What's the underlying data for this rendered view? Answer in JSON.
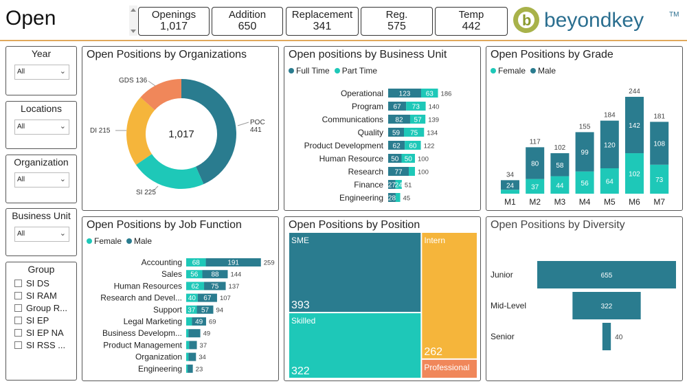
{
  "page_title": "Open",
  "colors": {
    "teal_dark": "#2a7c8f",
    "teal_light": "#1ec8b8",
    "orange": "#f0875a",
    "yellow": "#f5b53b",
    "accent_line": "#e0a85c"
  },
  "kpis": [
    {
      "label": "Openings",
      "value": "1,017"
    },
    {
      "label": "Addition",
      "value": "650"
    },
    {
      "label": "Replacement",
      "value": "341"
    },
    {
      "label": "Reg.",
      "value": "575"
    },
    {
      "label": "Temp",
      "value": "442"
    }
  ],
  "logo": {
    "text": "beyondkey",
    "tm": "TM",
    "letter": "b"
  },
  "filters": {
    "year": {
      "label": "Year",
      "value": "All"
    },
    "locations": {
      "label": "Locations",
      "value": "All"
    },
    "organization": {
      "label": "Organization",
      "value": "All"
    },
    "business_unit": {
      "label": "Business Unit",
      "value": "All"
    },
    "group": {
      "label": "Group",
      "items": [
        "SI DS",
        "SI RAM",
        "Group R...",
        "SI EP",
        "SI EP NA",
        "SI RSS ..."
      ]
    }
  },
  "legends": {
    "full_time": "Full Time",
    "part_time": "Part Time",
    "female": "Female",
    "male": "Male"
  },
  "chart_data": [
    {
      "id": "org",
      "type": "pie",
      "title": "Open Positions by Organizations",
      "center_label": "1,017",
      "slices": [
        {
          "name": "POC",
          "value": 441,
          "label_name": "POC",
          "label_value": "441"
        },
        {
          "name": "SI",
          "value": 225,
          "label": "SI 225"
        },
        {
          "name": "DI",
          "value": 215,
          "label": "DI 215"
        },
        {
          "name": "GDS",
          "value": 136,
          "label": "GDS 136"
        }
      ]
    },
    {
      "id": "bu",
      "type": "bar",
      "orientation": "horizontal",
      "stacked": true,
      "title": "Open positions by Business Unit",
      "categories": [
        "Operational",
        "Program",
        "Communications",
        "Quality",
        "Product Development",
        "Human Resource",
        "Research",
        "Finance",
        "Engineering"
      ],
      "series": [
        {
          "name": "Full Time",
          "values": [
            123,
            67,
            82,
            59,
            62,
            50,
            77,
            27,
            28
          ]
        },
        {
          "name": "Part Time",
          "values": [
            63,
            73,
            57,
            75,
            60,
            50,
            23,
            24,
            17
          ]
        }
      ],
      "segment_labels": [
        [
          "123",
          "63"
        ],
        [
          "67",
          "73"
        ],
        [
          "82",
          "57"
        ],
        [
          "59",
          "75"
        ],
        [
          "62",
          "60"
        ],
        [
          "50",
          "50"
        ],
        [
          "77",
          ""
        ],
        [
          "27",
          "24"
        ],
        [
          "28",
          ""
        ]
      ],
      "totals": [
        "186",
        "140",
        "139",
        "134",
        "122",
        "100",
        "100",
        "51",
        "45"
      ]
    },
    {
      "id": "grade",
      "type": "bar",
      "orientation": "vertical",
      "stacked": true,
      "title": "Open Positions by Grade",
      "categories": [
        "M1",
        "M2",
        "M3",
        "M4",
        "M5",
        "M6",
        "M7"
      ],
      "series": [
        {
          "name": "Female",
          "values": [
            10,
            37,
            44,
            56,
            64,
            102,
            73
          ]
        },
        {
          "name": "Male",
          "values": [
            24,
            80,
            58,
            99,
            120,
            142,
            108
          ]
        }
      ],
      "segment_labels": [
        [
          "",
          "24"
        ],
        [
          "37",
          "80"
        ],
        [
          "44",
          "58"
        ],
        [
          "56",
          "99"
        ],
        [
          "64",
          "120"
        ],
        [
          "102",
          "142"
        ],
        [
          "73",
          "108"
        ]
      ],
      "totals": [
        "34",
        "117",
        "102",
        "155",
        "184",
        "244",
        "181"
      ]
    },
    {
      "id": "job",
      "type": "bar",
      "orientation": "horizontal",
      "stacked": true,
      "title": "Open Positions by Job Function",
      "categories": [
        "Accounting",
        "Sales",
        "Human Resources",
        "Research and Devel...",
        "Support",
        "Legal Marketing",
        "Business Developm...",
        "Product Management",
        "Organization",
        "Engineering"
      ],
      "series": [
        {
          "name": "Female",
          "values": [
            68,
            56,
            62,
            40,
            37,
            20,
            8,
            10,
            8,
            5
          ]
        },
        {
          "name": "Male",
          "values": [
            191,
            88,
            75,
            67,
            57,
            49,
            41,
            27,
            26,
            18
          ]
        }
      ],
      "segment_labels": [
        [
          "68",
          "191"
        ],
        [
          "56",
          "88"
        ],
        [
          "62",
          "75"
        ],
        [
          "40",
          "67"
        ],
        [
          "37",
          "57"
        ],
        [
          "",
          "49"
        ],
        [
          "",
          ""
        ],
        [
          "",
          ""
        ],
        [
          "",
          ""
        ],
        [
          "",
          ""
        ]
      ],
      "totals": [
        "259",
        "144",
        "137",
        "107",
        "94",
        "69",
        "49",
        "37",
        "34",
        "23"
      ]
    },
    {
      "id": "position",
      "type": "treemap",
      "title": "Open Positions by Position",
      "items": [
        {
          "name": "SME",
          "value": 393
        },
        {
          "name": "Skilled",
          "value": 322
        },
        {
          "name": "Intern",
          "value": 262
        },
        {
          "name": "Professional",
          "value": 40
        }
      ],
      "value_labels": [
        "393",
        "322",
        "262",
        ""
      ]
    },
    {
      "id": "diversity",
      "type": "funnel",
      "title": "Open Positions by Diversity",
      "categories": [
        "Junior",
        "Mid-Level",
        "Senior"
      ],
      "values": [
        655,
        322,
        40
      ],
      "labels": [
        "655",
        "322",
        "40"
      ]
    }
  ]
}
